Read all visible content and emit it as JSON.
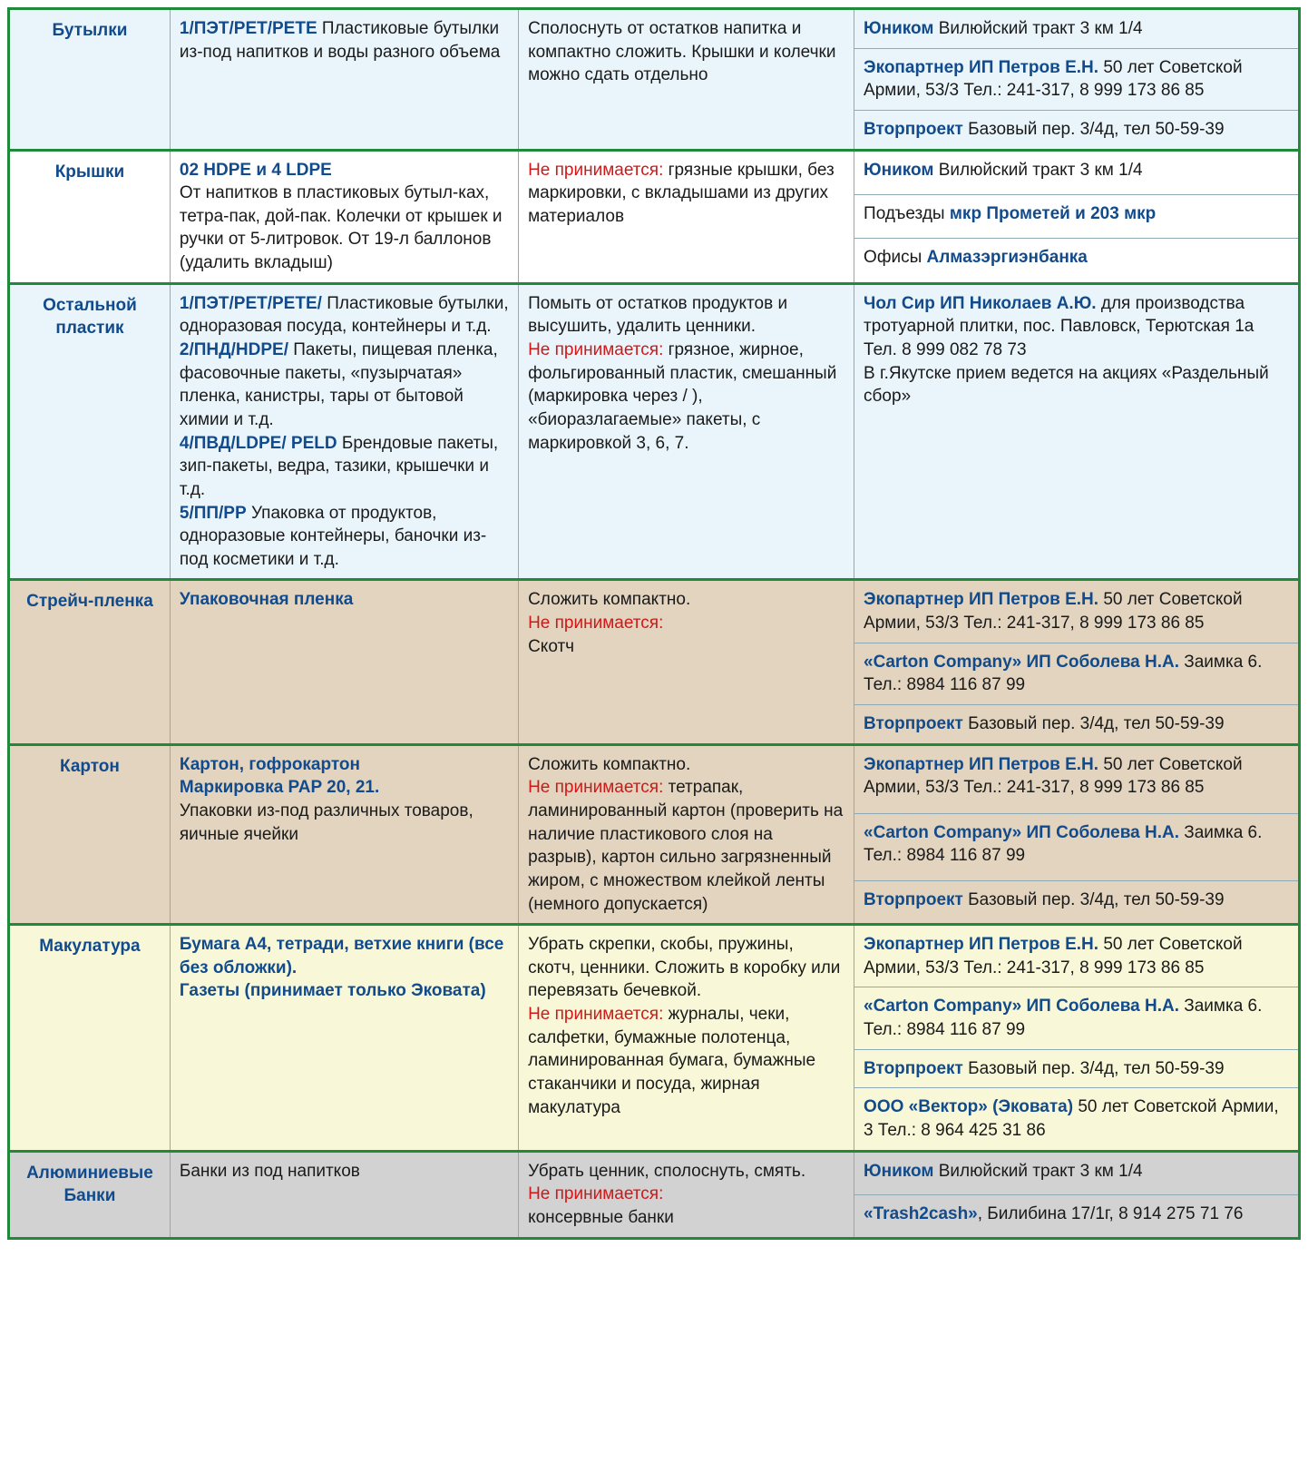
{
  "colors": {
    "outer_border": "#218a3a",
    "inner_border": "#8fa9b5",
    "link": "#124b8c",
    "red": "#d01818",
    "text": "#1a1a1a"
  },
  "sections": [
    {
      "bg": "#eaf5fb",
      "category": "Бутылки",
      "desc": [
        {
          "bold": "1/ПЭТ/PET/PETE",
          "rest": "    Пластиковые бутылки из-под напитков и воды разного объема"
        }
      ],
      "prep": [
        {
          "text": "Сполоснуть от остатков напитка и компактно сложить. Крышки и колечки можно сдать отдельно"
        }
      ],
      "locations": [
        [
          {
            "bold": "Юником",
            "rest": " Вилюйский тракт 3 км 1/4"
          }
        ],
        [
          {
            "bold": "Экопартнер ИП Петров Е.Н.",
            "rest": " 50 лет Советской Армии, 53/3 Тел.: 241-317, 8 999 173 86 85"
          }
        ],
        [
          {
            "bold": "Вторпроект",
            "rest": " Базовый пер. 3/4д, тел 50-59-39"
          }
        ]
      ]
    },
    {
      "bg": "#ffffff",
      "category": "Крышки",
      "desc": [
        {
          "bold": "02 HDPE и 4 LDPE"
        },
        {
          "text": "От напитков в пластиковых бутыл-ках, тетра-пак, дой-пак. Колечки от крышек и ручки от 5-литровок. От 19-л баллонов (удалить вкладыш)"
        }
      ],
      "prep": [
        {
          "red": "Не принимается:",
          "rest": " грязные крышки, без маркировки, с вкладышами из других материалов"
        }
      ],
      "locations": [
        [
          {
            "bold": "Юником",
            "rest": " Вилюйский тракт 3 км 1/4"
          }
        ],
        [
          {
            "text": "Подъезды "
          },
          {
            "bold": "мкр Прометей и 203 мкр"
          }
        ],
        [
          {
            "text": "Офисы "
          },
          {
            "bold": "Алмазэргиэнбанка"
          }
        ]
      ]
    },
    {
      "bg": "#eaf5fb",
      "category": "Остальной пластик",
      "desc": [
        {
          "bold": " 1/ПЭТ/PET/PETE/",
          "rest": " Пластиковые бутылки, одноразовая посуда, контейнеры и т.д."
        },
        {
          "bold": "2/ПНД/HDPE/",
          "rest": " Пакеты, пищевая пленка, фасовочные пакеты, «пузырчатая» пленка, канистры, тары от бытовой химии и т.д."
        },
        {
          "bold": "4/ПВД/LDPE/ PELD",
          "rest": " Брендовые пакеты, зип-пакеты, ведра, тазики, крышечки и т.д."
        },
        {
          "bold": "5/ПП/PP",
          "rest": " Упаковка от продуктов, одноразовые контейнеры, баночки из-под косметики и т.д."
        }
      ],
      "prep": [
        {
          "text": "Помыть от остатков продуктов и высушить, удалить ценники."
        },
        {
          "red": "Не принимается:",
          "rest": " грязное, жирное, фольгированный пластик, смешанный (маркировка через / ), «биоразлагаемые» пакеты, с маркировкой 3, 6, 7."
        }
      ],
      "locations": [
        [
          {
            "bold": "Чол Сир ИП Николаев А.Ю.",
            "rest": " для производства тротуарной плитки, пос. Павловск, Терютская 1а"
          },
          {
            "br": true
          },
          {
            "text": "Тел. 8 999 082 78 73"
          },
          {
            "br": true
          },
          {
            "text": "В г.Якутске прием ведется на акциях «Раздельный сбор»"
          }
        ]
      ]
    },
    {
      "bg": "#e2d4bf",
      "category": "Стрейч-пленка",
      "desc": [
        {
          "bold": "Упаковочная пленка"
        }
      ],
      "prep": [
        {
          "text": "Сложить компактно."
        },
        {
          "red": "Не принимается:"
        },
        {
          "text": "Скотч"
        }
      ],
      "locations": [
        [
          {
            "bold": "Экопартнер ИП Петров Е.Н.",
            "rest": " 50 лет Советской Армии, 53/3 Тел.: 241-317, 8 999 173 86 85"
          }
        ],
        [
          {
            "bold": "«Carton Company» ИП Соболева Н.А.",
            "rest": "  Заимка 6. Тел.: 8984 116 87 99"
          }
        ],
        [
          {
            "bold": "Вторпроект",
            "rest": " Базовый пер. 3/4д, тел 50-59-39"
          }
        ]
      ]
    },
    {
      "bg": "#e2d4bf",
      "category": "Картон",
      "desc": [
        {
          "bold": "Картон, гофрокартон"
        },
        {
          "bold": "Маркировка PAP 20, 21."
        },
        {
          "text": "Упаковки из-под различных товаров, яичные ячейки"
        }
      ],
      "prep": [
        {
          "text": "Сложить компактно."
        },
        {
          "red": "Не принимается:",
          "rest": " тетрапак, ламинированный картон (проверить на наличие пластикового слоя на разрыв), картон сильно загрязненный жиром, с множеством клейкой ленты (немного допускается)"
        }
      ],
      "locations": [
        [
          {
            "bold": "Экопартнер ИП Петров Е.Н.",
            "rest": " 50 лет Советской Армии, 53/3 Тел.: 241-317, 8 999 173 86 85"
          }
        ],
        [
          {
            "bold": "«Carton Company» ИП Соболева Н.А.",
            "rest": "  Заимка 6. Тел.: 8984 116 87 99"
          }
        ],
        [
          {
            "bold": "Вторпроект",
            "rest": " Базовый пер. 3/4д, тел 50-59-39"
          }
        ]
      ]
    },
    {
      "bg": "#f8f8d9",
      "category": "Макулатура",
      "desc": [
        {
          "bold": "Бумага А4, тетради, ветхие книги (все без обложки)."
        },
        {
          "bold": "Газеты (принимает только Эковата)"
        }
      ],
      "prep": [
        {
          "text": "Убрать скрепки, скобы, пружины, скотч, ценники. Сложить в коробку или перевязать бечевкой."
        },
        {
          "red": "Не принимается:",
          "rest": " журналы, чеки, салфетки, бумажные полотенца, ламинированная бумага, бумажные стаканчики и посуда, жирная макулатура"
        }
      ],
      "locations": [
        [
          {
            "bold": "Экопартнер ИП Петров Е.Н.",
            "rest": " 50 лет Советской Армии, 53/3 Тел.: 241-317, 8 999 173 86 85"
          }
        ],
        [
          {
            "bold": "«Carton Company» ИП Соболева Н.А.",
            "rest": "  Заимка 6. Тел.: 8984 116 87 99"
          }
        ],
        [
          {
            "bold": "Вторпроект",
            "rest": " Базовый пер. 3/4д, тел 50-59-39"
          }
        ],
        [
          {
            "bold": "ООО «Вектор» (Эковата)",
            "rest": " 50 лет Советской Армии, 3 Тел.: 8 964 425 31 86"
          }
        ]
      ]
    },
    {
      "bg": "#d2d2d2",
      "category": "Алюминиевые Банки",
      "desc": [
        {
          "text": "Банки из под напитков"
        }
      ],
      "prep": [
        {
          "text": "Убрать ценник, сполоснуть, смять."
        },
        {
          "red": "Не принимается:"
        },
        {
          "text": "консервные банки"
        }
      ],
      "locations": [
        [
          {
            "bold": "Юником",
            "rest": " Вилюйский тракт 3 км 1/4"
          }
        ],
        [
          {
            "bold": "«Trash2cash»",
            "rest": ", Билибина 17/1г, 8 914 275 71 76"
          }
        ]
      ]
    }
  ]
}
